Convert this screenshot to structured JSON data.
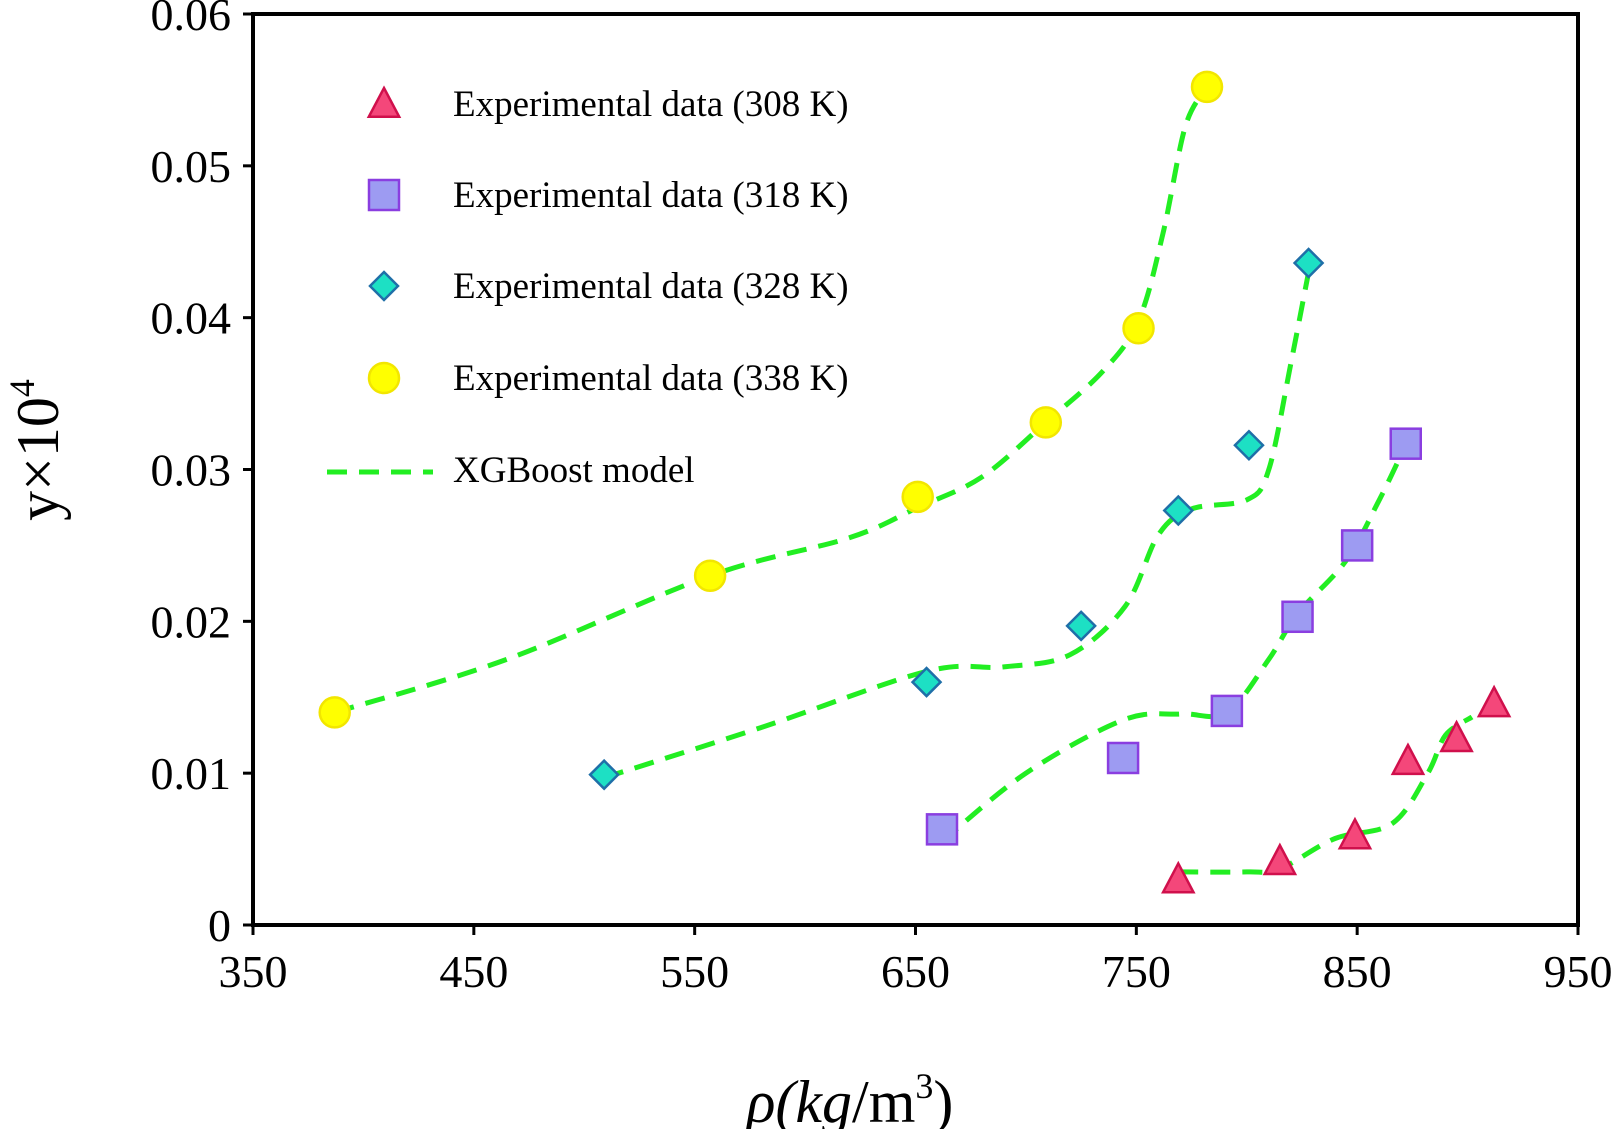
{
  "chart_data": {
    "type": "scatter",
    "title": "",
    "xlabel": {
      "prefix": "ρ(",
      "unit_italic": "kg",
      "slash": "/",
      "unit": "m",
      "exp": "3",
      "suffix": ")"
    },
    "ylabel": {
      "base": "y×10",
      "exp": "4"
    },
    "xlim": [
      350,
      950
    ],
    "ylim": [
      0,
      0.06
    ],
    "x_ticks": [
      350,
      450,
      550,
      650,
      750,
      850,
      950
    ],
    "y_ticks": [
      0,
      0.01,
      0.02,
      0.03,
      0.04,
      0.05,
      0.06
    ],
    "x_tick_labels": [
      "350",
      "450",
      "550",
      "650",
      "750",
      "850",
      "950"
    ],
    "y_tick_labels": [
      "0",
      "0.01",
      "0.02",
      "0.03",
      "0.04",
      "0.05",
      "0.06"
    ],
    "legend_position": "top-left",
    "series": [
      {
        "name": "Experimental data (308 K)",
        "marker": "triangle",
        "color": "#f4477a",
        "stroke": "#d0104c",
        "points": [
          [
            769,
            0.003
          ],
          [
            815,
            0.0042
          ],
          [
            849,
            0.0059
          ],
          [
            873,
            0.0108
          ],
          [
            895,
            0.0123
          ],
          [
            912,
            0.0146
          ]
        ]
      },
      {
        "name": "Experimental data (318 K)",
        "marker": "square",
        "color": "#9d9bf2",
        "stroke": "#8a3ee0",
        "points": [
          [
            662,
            0.0063
          ],
          [
            744,
            0.011
          ],
          [
            791,
            0.0141
          ],
          [
            823,
            0.0203
          ],
          [
            850,
            0.025
          ],
          [
            872,
            0.0317
          ]
        ]
      },
      {
        "name": "Experimental data (328 K)",
        "marker": "diamond",
        "color": "#1de0c4",
        "stroke": "#1f6fa8",
        "points": [
          [
            509,
            0.0099
          ],
          [
            655,
            0.016
          ],
          [
            725,
            0.0197
          ],
          [
            769,
            0.0273
          ],
          [
            801,
            0.0316
          ],
          [
            828,
            0.0436
          ]
        ]
      },
      {
        "name": "Experimental data (338 K)",
        "marker": "circle",
        "color": "#ffff00",
        "stroke": "#f2e600",
        "points": [
          [
            387,
            0.014
          ],
          [
            557,
            0.023
          ],
          [
            651,
            0.0282
          ],
          [
            709,
            0.0331
          ],
          [
            751,
            0.0393
          ],
          [
            782,
            0.0552
          ]
        ]
      }
    ],
    "model": {
      "name": "XGBoost  model",
      "color": "#22ee22",
      "dash": "dashed",
      "curves": [
        [
          [
            387,
            0.014
          ],
          [
            465,
            0.0175
          ],
          [
            557,
            0.023
          ],
          [
            620,
            0.0255
          ],
          [
            651,
            0.0275
          ],
          [
            680,
            0.0295
          ],
          [
            709,
            0.0331
          ],
          [
            735,
            0.0365
          ],
          [
            751,
            0.0398
          ],
          [
            762,
            0.0455
          ],
          [
            772,
            0.0525
          ],
          [
            781,
            0.055
          ]
        ],
        [
          [
            509,
            0.0097
          ],
          [
            580,
            0.013
          ],
          [
            655,
            0.0167
          ],
          [
            690,
            0.017
          ],
          [
            720,
            0.0178
          ],
          [
            745,
            0.021
          ],
          [
            760,
            0.0257
          ],
          [
            775,
            0.0274
          ],
          [
            800,
            0.028
          ],
          [
            810,
            0.03
          ],
          [
            820,
            0.037
          ],
          [
            828,
            0.043
          ]
        ],
        [
          [
            662,
            0.0055
          ],
          [
            700,
            0.01
          ],
          [
            744,
            0.0135
          ],
          [
            770,
            0.0139
          ],
          [
            791,
            0.014
          ],
          [
            810,
            0.0175
          ],
          [
            823,
            0.0205
          ],
          [
            845,
            0.024
          ],
          [
            860,
            0.028
          ],
          [
            870,
            0.031
          ]
        ],
        [
          [
            769,
            0.0035
          ],
          [
            800,
            0.0035
          ],
          [
            815,
            0.0037
          ],
          [
            840,
            0.0057
          ],
          [
            866,
            0.0067
          ],
          [
            882,
            0.01
          ],
          [
            890,
            0.0125
          ],
          [
            902,
            0.0137
          ]
        ]
      ]
    }
  }
}
